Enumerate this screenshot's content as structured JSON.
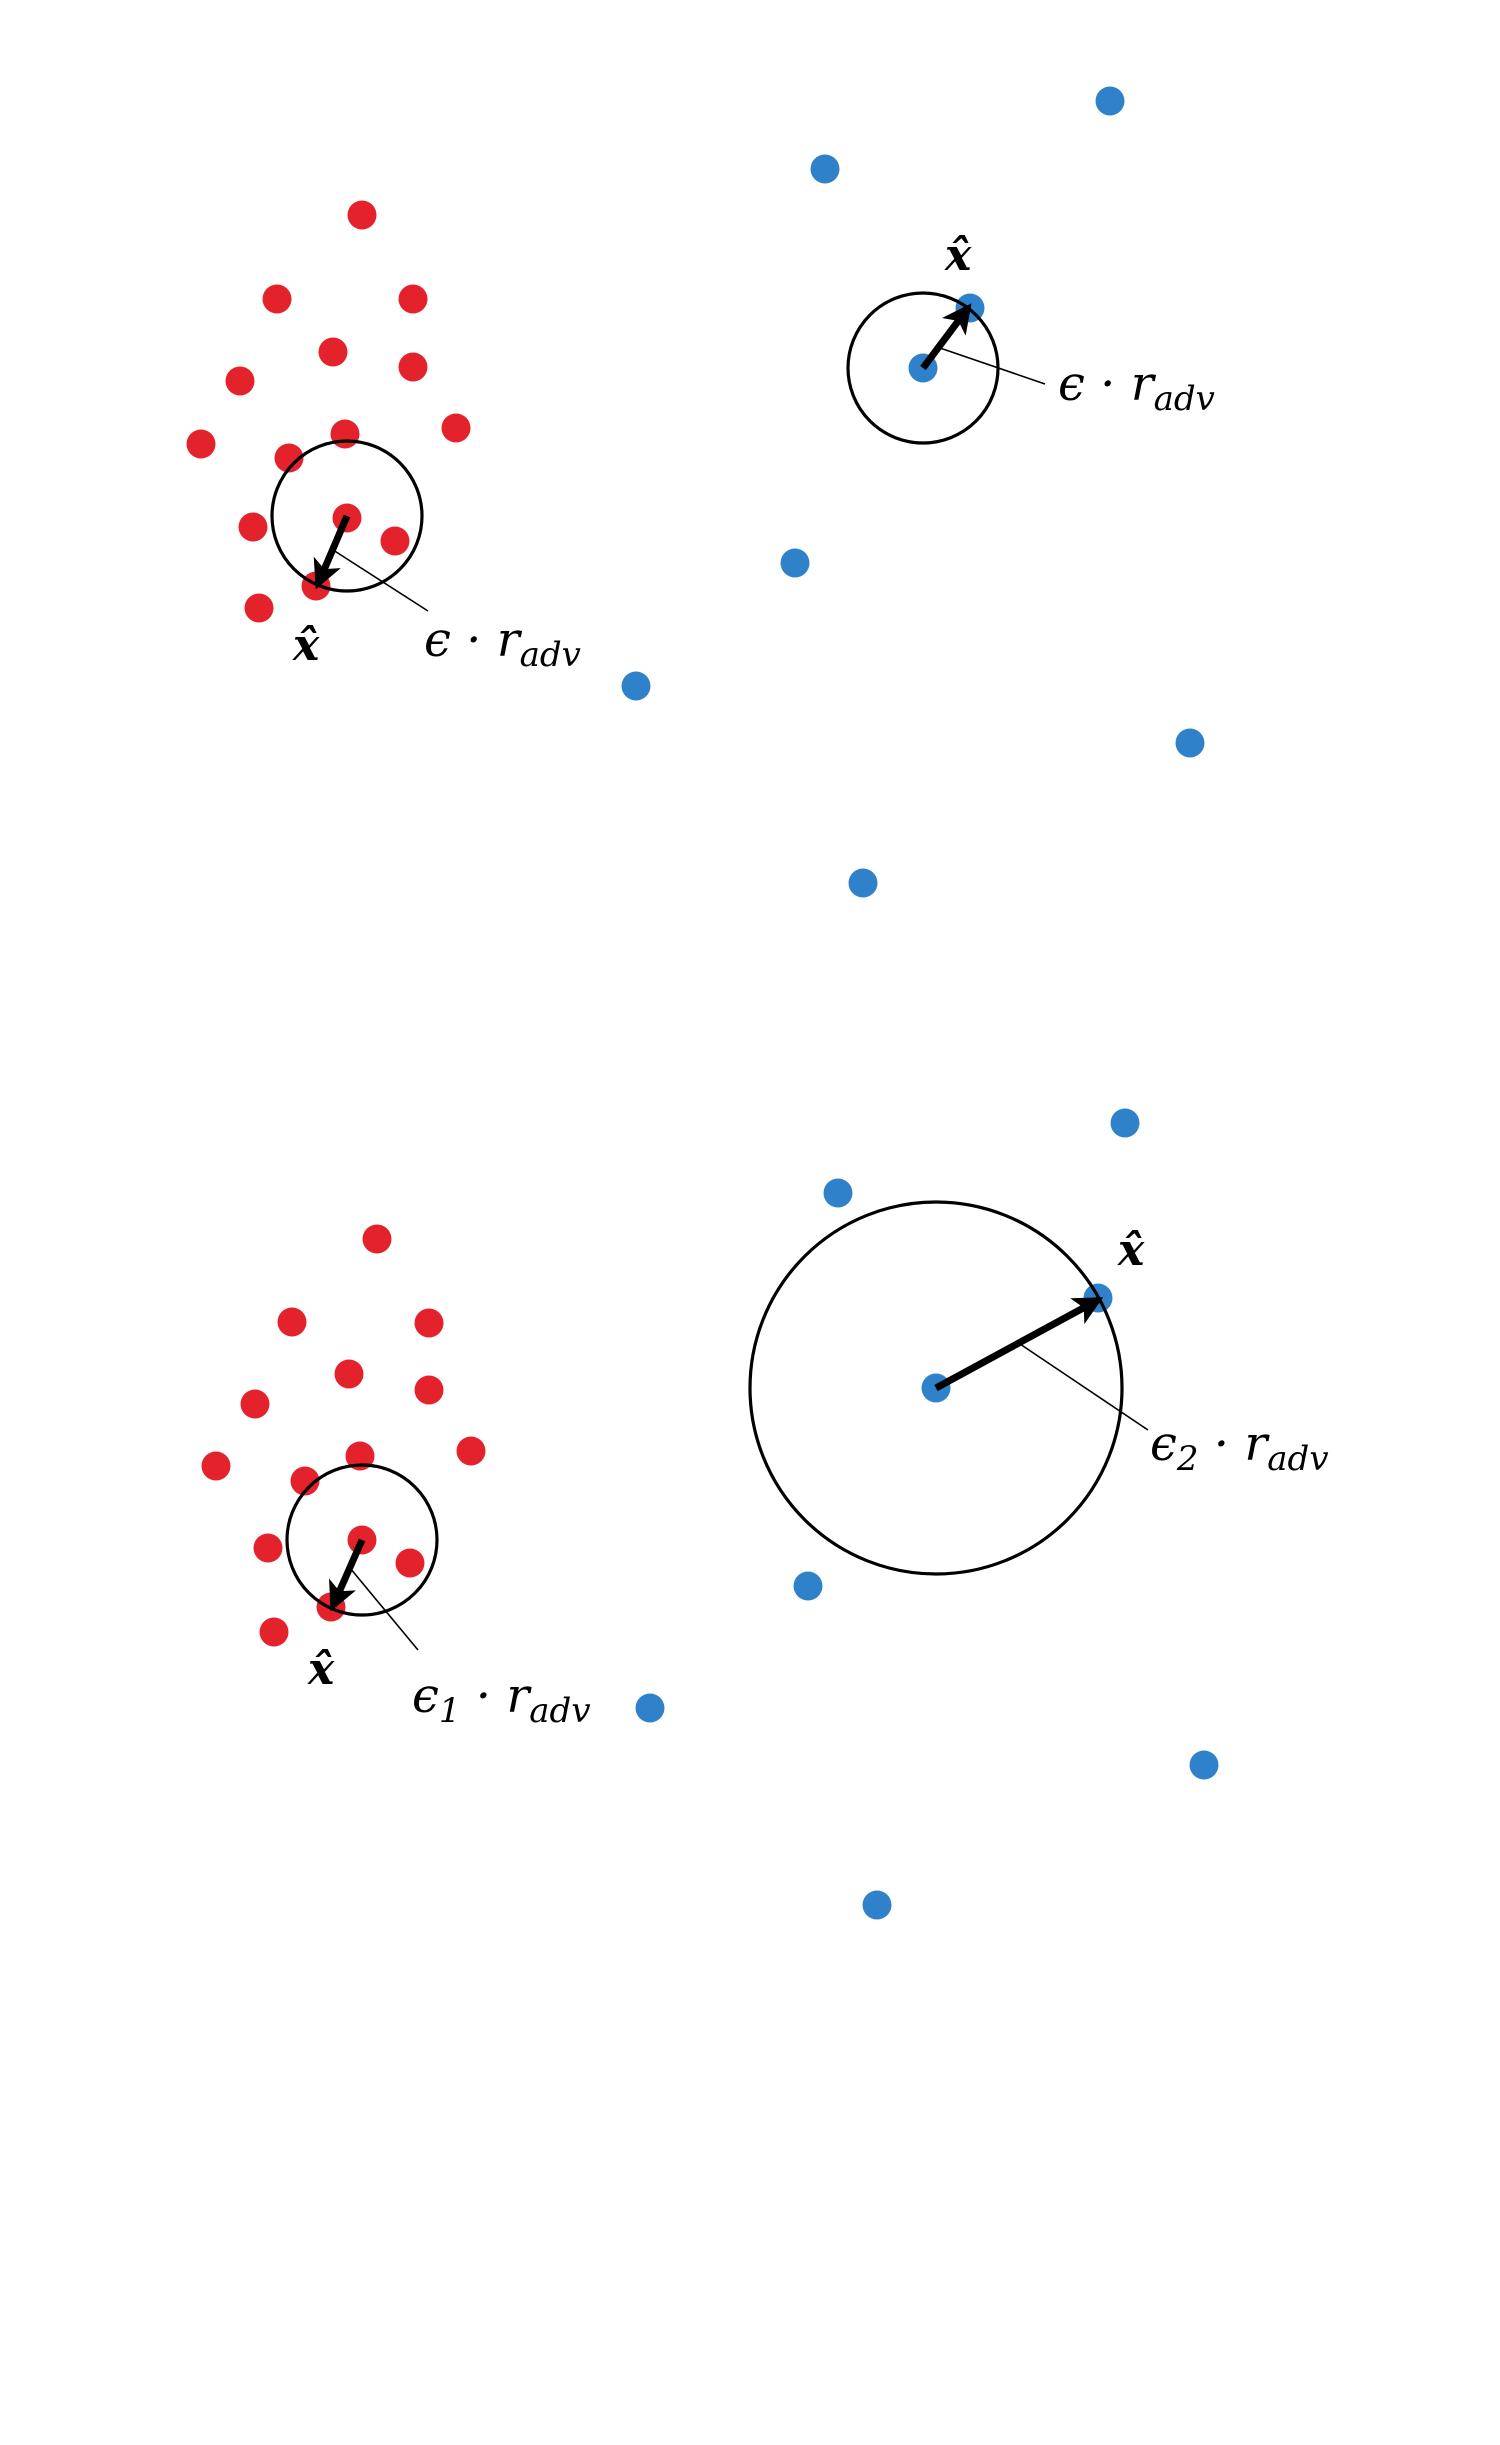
{
  "colors": {
    "class_a": "#e3222b",
    "class_b": "#2f82c9",
    "stroke": "#000000",
    "background": "#ffffff"
  },
  "panels": [
    {
      "id": "top",
      "class_a_points": 14,
      "class_b_points": 7,
      "perturbation_label": {
        "symbol": "ϵ",
        "subscript": "",
        "dot": "·",
        "r": "r",
        "r_subscript": "adv"
      },
      "adversarial_label": "𝒙̂"
    },
    {
      "id": "bottom",
      "class_a_points": 14,
      "class_b_points": 7,
      "perturbation_label_a": {
        "symbol": "ϵ",
        "subscript": "1",
        "dot": "·",
        "r": "r",
        "r_subscript": "adv"
      },
      "perturbation_label_b": {
        "symbol": "ϵ",
        "subscript": "2",
        "dot": "·",
        "r": "r",
        "r_subscript": "adv"
      },
      "adversarial_label": "𝒙̂"
    }
  ]
}
